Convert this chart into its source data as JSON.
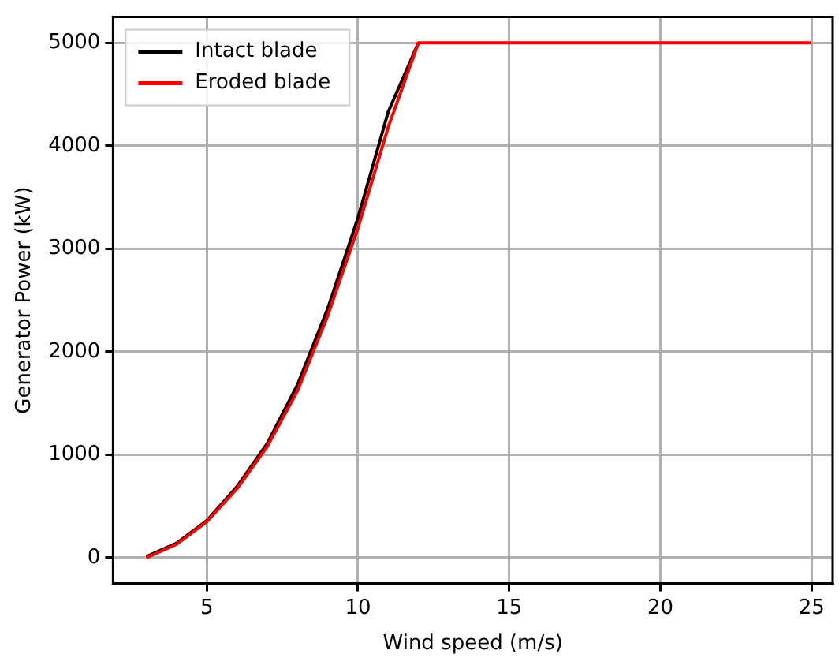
{
  "chart_data": {
    "type": "line",
    "xlabel": "Wind speed (m/s)",
    "ylabel": "Generator Power (kW)",
    "x": [
      3,
      4,
      5,
      6,
      7,
      8,
      9,
      10,
      11,
      12,
      13,
      14,
      15,
      16,
      17,
      18,
      19,
      20,
      21,
      22,
      23,
      24,
      25
    ],
    "series": [
      {
        "name": "Intact blade",
        "color": "#000000",
        "values": [
          10,
          140,
          360,
          690,
          1110,
          1680,
          2420,
          3300,
          4330,
          5000,
          null,
          null,
          null,
          null,
          null,
          null,
          null,
          null,
          null,
          null,
          null,
          null,
          null
        ]
      },
      {
        "name": "Eroded blade",
        "color": "#ff0000",
        "values": [
          0,
          130,
          350,
          670,
          1080,
          1620,
          2350,
          3200,
          4180,
          5000,
          5000,
          5000,
          5000,
          5000,
          5000,
          5000,
          5000,
          5000,
          5000,
          5000,
          5000,
          5000,
          5000
        ]
      }
    ],
    "xlim": [
      1.9,
      25.7
    ],
    "xticks": [
      5,
      10,
      15,
      20,
      25
    ],
    "ylim": [
      -250,
      5250
    ],
    "yticks": [
      0,
      1000,
      2000,
      3000,
      4000,
      5000
    ],
    "grid": true,
    "legend": "top left",
    "marker": "none",
    "line_style": "solid"
  }
}
